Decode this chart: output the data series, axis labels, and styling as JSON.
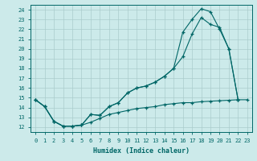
{
  "xlabel": "Humidex (Indice chaleur)",
  "bg_color": "#cceaea",
  "line_color": "#006666",
  "grid_color": "#aacccc",
  "xlim": [
    -0.5,
    23.5
  ],
  "ylim": [
    11.5,
    24.5
  ],
  "xticks": [
    0,
    1,
    2,
    3,
    4,
    5,
    6,
    7,
    8,
    9,
    10,
    11,
    12,
    13,
    14,
    15,
    16,
    17,
    18,
    19,
    20,
    21,
    22,
    23
  ],
  "yticks": [
    12,
    13,
    14,
    15,
    16,
    17,
    18,
    19,
    20,
    21,
    22,
    23,
    24
  ],
  "line1_x": [
    0,
    1,
    2,
    3,
    4,
    5,
    6,
    7,
    8,
    9,
    10,
    11,
    12,
    13,
    14,
    15,
    16,
    17,
    18,
    19,
    20,
    21,
    22,
    23
  ],
  "line1_y": [
    14.8,
    14.1,
    12.6,
    12.1,
    12.1,
    12.2,
    12.5,
    12.9,
    13.3,
    13.5,
    13.7,
    13.9,
    14.0,
    14.1,
    14.3,
    14.4,
    14.5,
    14.5,
    14.6,
    14.65,
    14.7,
    14.75,
    14.8,
    14.8
  ],
  "line2_x": [
    0,
    1,
    2,
    3,
    4,
    5,
    6,
    7,
    8,
    9,
    10,
    11,
    12,
    13,
    14,
    15,
    16,
    17,
    18,
    19,
    20,
    21,
    22
  ],
  "line2_y": [
    14.8,
    14.1,
    12.6,
    12.1,
    12.1,
    12.2,
    13.3,
    13.2,
    14.1,
    14.5,
    15.5,
    16.0,
    16.2,
    16.6,
    17.2,
    18.0,
    19.2,
    21.5,
    23.2,
    22.5,
    22.2,
    20.0,
    14.8
  ],
  "line3_x": [
    0,
    1,
    2,
    3,
    4,
    5,
    6,
    7,
    8,
    9,
    10,
    11,
    12,
    13,
    14,
    15,
    16,
    17,
    18,
    19,
    20,
    21,
    22
  ],
  "line3_y": [
    14.8,
    14.1,
    12.6,
    12.1,
    12.1,
    12.2,
    13.3,
    13.2,
    14.1,
    14.5,
    15.5,
    16.0,
    16.2,
    16.6,
    17.2,
    18.0,
    21.7,
    23.0,
    24.1,
    23.8,
    22.0,
    20.0,
    14.8
  ]
}
